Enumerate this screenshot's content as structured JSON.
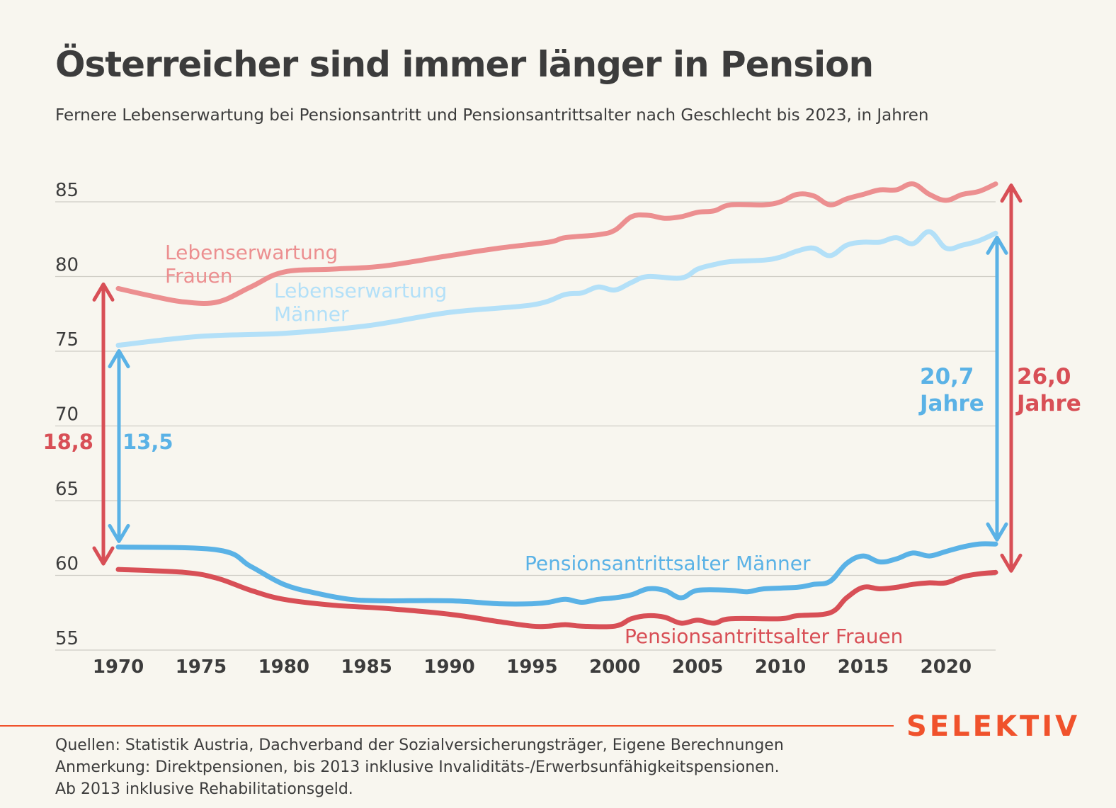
{
  "title": "Österreicher sind immer länger in Pension",
  "subtitle": "Fernere Lebenserwartung bei Pensionsantritt und Pensionsantrittsalter nach Geschlecht bis 2023, in Jahren",
  "notes": [
    "Quellen: Statistik Austria, Dachverband der Sozialversicherungsträger, Eigene Berechnungen",
    "Anmerkung: Direktpensionen, bis 2013 inklusive Invaliditäts-/Erwerbsunfähigkeitspensionen.",
    "Ab 2013 inklusive Rehabilitationsgeld."
  ],
  "logo": "SELEKTIV",
  "colors": {
    "women_life": "#ec8f90",
    "men_life": "#b3e0f8",
    "men_age": "#5ab2e6",
    "women_age": "#d84f56",
    "grid": "#cfcdc5",
    "accent": "#f0522c"
  },
  "chart_data": {
    "type": "line",
    "xlim": [
      1970,
      2023
    ],
    "ylim": [
      55,
      85
    ],
    "y_ticks": [
      55,
      60,
      65,
      70,
      75,
      80,
      85
    ],
    "x_ticks": [
      1970,
      1975,
      1980,
      1985,
      1990,
      1995,
      2000,
      2005,
      2010,
      2015,
      2020
    ],
    "grid": "horizontal",
    "series": [
      {
        "key": "women_life",
        "name": "Lebenserwartung Frauen",
        "label_lines": [
          "Lebenserwartung",
          "Frauen"
        ],
        "points": [
          [
            1970,
            79.2
          ],
          [
            1972,
            78.7
          ],
          [
            1974,
            78.3
          ],
          [
            1976,
            78.3
          ],
          [
            1978,
            79.3
          ],
          [
            1980,
            80.3
          ],
          [
            1983,
            80.5
          ],
          [
            1986,
            80.7
          ],
          [
            1990,
            81.4
          ],
          [
            1993,
            81.9
          ],
          [
            1996,
            82.3
          ],
          [
            1997,
            82.6
          ],
          [
            1999,
            82.8
          ],
          [
            2000,
            83.1
          ],
          [
            2001,
            84.0
          ],
          [
            2002,
            84.1
          ],
          [
            2003,
            83.9
          ],
          [
            2004,
            84.0
          ],
          [
            2005,
            84.3
          ],
          [
            2006,
            84.4
          ],
          [
            2007,
            84.8
          ],
          [
            2009,
            84.8
          ],
          [
            2010,
            85.0
          ],
          [
            2011,
            85.5
          ],
          [
            2012,
            85.4
          ],
          [
            2013,
            84.8
          ],
          [
            2014,
            85.2
          ],
          [
            2015,
            85.5
          ],
          [
            2016,
            85.8
          ],
          [
            2017,
            85.8
          ],
          [
            2018,
            86.2
          ],
          [
            2019,
            85.5
          ],
          [
            2020,
            85.1
          ],
          [
            2021,
            85.5
          ],
          [
            2022,
            85.7
          ],
          [
            2023,
            86.2
          ]
        ]
      },
      {
        "key": "men_life",
        "name": "Lebenserwartung Männer",
        "label_lines": [
          "Lebenserwartung",
          "Männer"
        ],
        "points": [
          [
            1970,
            75.4
          ],
          [
            1975,
            76.0
          ],
          [
            1980,
            76.2
          ],
          [
            1985,
            76.7
          ],
          [
            1990,
            77.6
          ],
          [
            1995,
            78.1
          ],
          [
            1997,
            78.8
          ],
          [
            1998,
            78.9
          ],
          [
            1999,
            79.3
          ],
          [
            2000,
            79.1
          ],
          [
            2001,
            79.6
          ],
          [
            2002,
            80.0
          ],
          [
            2004,
            79.9
          ],
          [
            2005,
            80.5
          ],
          [
            2006,
            80.8
          ],
          [
            2007,
            81.0
          ],
          [
            2009,
            81.1
          ],
          [
            2010,
            81.3
          ],
          [
            2011,
            81.7
          ],
          [
            2012,
            81.9
          ],
          [
            2013,
            81.4
          ],
          [
            2014,
            82.1
          ],
          [
            2015,
            82.3
          ],
          [
            2016,
            82.3
          ],
          [
            2017,
            82.6
          ],
          [
            2018,
            82.2
          ],
          [
            2019,
            83.0
          ],
          [
            2020,
            81.9
          ],
          [
            2021,
            82.1
          ],
          [
            2022,
            82.4
          ],
          [
            2023,
            82.9
          ]
        ]
      },
      {
        "key": "men_age",
        "name": "Pensionsantrittsalter Männer",
        "label_lines": [
          "Pensionsantrittsalter Männer"
        ],
        "points": [
          [
            1970,
            61.9
          ],
          [
            1976,
            61.7
          ],
          [
            1978,
            60.6
          ],
          [
            1980,
            59.4
          ],
          [
            1982,
            58.8
          ],
          [
            1984,
            58.4
          ],
          [
            1986,
            58.3
          ],
          [
            1990,
            58.3
          ],
          [
            1993,
            58.1
          ],
          [
            1995,
            58.1
          ],
          [
            1996,
            58.2
          ],
          [
            1997,
            58.4
          ],
          [
            1998,
            58.2
          ],
          [
            1999,
            58.4
          ],
          [
            2000,
            58.5
          ],
          [
            2001,
            58.7
          ],
          [
            2002,
            59.1
          ],
          [
            2003,
            59.0
          ],
          [
            2004,
            58.5
          ],
          [
            2005,
            59.0
          ],
          [
            2007,
            59.0
          ],
          [
            2008,
            58.9
          ],
          [
            2009,
            59.1
          ],
          [
            2011,
            59.2
          ],
          [
            2012,
            59.4
          ],
          [
            2013,
            59.6
          ],
          [
            2014,
            60.8
          ],
          [
            2015,
            61.3
          ],
          [
            2016,
            60.9
          ],
          [
            2017,
            61.1
          ],
          [
            2018,
            61.5
          ],
          [
            2019,
            61.3
          ],
          [
            2020,
            61.6
          ],
          [
            2021,
            61.9
          ],
          [
            2022,
            62.1
          ],
          [
            2023,
            62.1
          ]
        ]
      },
      {
        "key": "women_age",
        "name": "Pensionsantrittsalter Frauen",
        "label_lines": [
          "Pensionsantrittsalter Frauen"
        ],
        "points": [
          [
            1970,
            60.4
          ],
          [
            1974,
            60.2
          ],
          [
            1976,
            59.8
          ],
          [
            1978,
            59.0
          ],
          [
            1980,
            58.4
          ],
          [
            1983,
            58.0
          ],
          [
            1986,
            57.8
          ],
          [
            1990,
            57.4
          ],
          [
            1993,
            56.9
          ],
          [
            1995,
            56.6
          ],
          [
            1996,
            56.6
          ],
          [
            1997,
            56.7
          ],
          [
            1998,
            56.6
          ],
          [
            2000,
            56.6
          ],
          [
            2001,
            57.1
          ],
          [
            2002,
            57.3
          ],
          [
            2003,
            57.2
          ],
          [
            2004,
            56.8
          ],
          [
            2005,
            57.0
          ],
          [
            2006,
            56.8
          ],
          [
            2007,
            57.1
          ],
          [
            2010,
            57.1
          ],
          [
            2011,
            57.3
          ],
          [
            2013,
            57.5
          ],
          [
            2014,
            58.5
          ],
          [
            2015,
            59.2
          ],
          [
            2016,
            59.1
          ],
          [
            2017,
            59.2
          ],
          [
            2018,
            59.4
          ],
          [
            2019,
            59.5
          ],
          [
            2020,
            59.5
          ],
          [
            2021,
            59.9
          ],
          [
            2022,
            60.1
          ],
          [
            2023,
            60.2
          ]
        ]
      }
    ],
    "annotations": {
      "diff_1970_women": "18,8",
      "diff_1970_men": "13,5",
      "diff_2023_men": [
        "20,7",
        "Jahre"
      ],
      "diff_2023_women": [
        "26,0",
        "Jahre"
      ]
    }
  }
}
